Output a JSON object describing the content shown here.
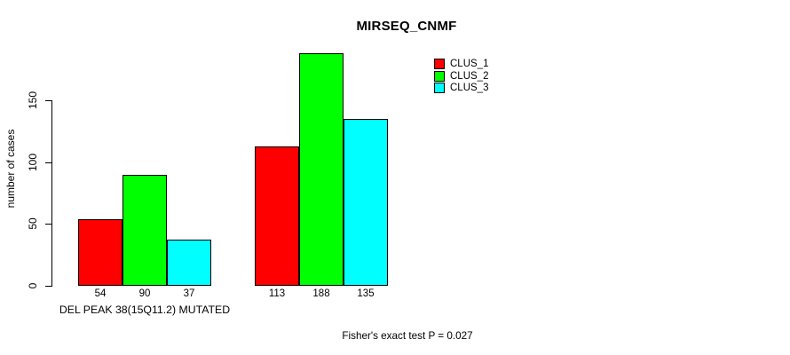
{
  "chart_data": {
    "type": "bar",
    "title": "MIRSEQ_CNMF",
    "ylabel": "number of cases",
    "yticks": [
      0,
      50,
      100,
      150
    ],
    "ylim": [
      0,
      188
    ],
    "grid": false,
    "legend_position": "top-right",
    "series": [
      {
        "name": "CLUS_1",
        "color": "#FF0000"
      },
      {
        "name": "CLUS_2",
        "color": "#00FF00"
      },
      {
        "name": "CLUS_3",
        "color": "#00FFFF"
      }
    ],
    "groups": [
      {
        "label": "DEL PEAK 38(15Q11.2) MUTATED",
        "values": [
          54,
          90,
          37
        ]
      },
      {
        "label": "",
        "values": [
          113,
          188,
          135
        ]
      }
    ],
    "annotation": "Fisher's exact test P = 0.027",
    "bar_border_color": "#000000",
    "text_color": "#000000",
    "background_color": "#FFFFFF"
  }
}
